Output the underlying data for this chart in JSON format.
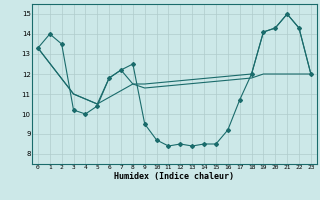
{
  "xlabel": "Humidex (Indice chaleur)",
  "xlim": [
    -0.5,
    23.5
  ],
  "ylim": [
    7.5,
    15.5
  ],
  "yticks": [
    8,
    9,
    10,
    11,
    12,
    13,
    14,
    15
  ],
  "xticks": [
    0,
    1,
    2,
    3,
    4,
    5,
    6,
    7,
    8,
    9,
    10,
    11,
    12,
    13,
    14,
    15,
    16,
    17,
    18,
    19,
    20,
    21,
    22,
    23
  ],
  "bg_color": "#cce8e8",
  "grid_color": "#b0cccc",
  "line_color": "#1a6b6b",
  "series1_x": [
    0,
    1,
    2,
    3,
    4,
    5,
    6,
    7,
    8,
    9,
    10,
    11,
    12,
    13,
    14,
    15,
    16,
    17,
    18,
    19,
    20,
    21,
    22,
    23
  ],
  "series1_y": [
    13.3,
    14.0,
    13.5,
    10.2,
    10.0,
    10.4,
    11.8,
    12.2,
    12.5,
    9.5,
    8.7,
    8.4,
    8.5,
    8.4,
    8.5,
    8.5,
    9.2,
    10.7,
    12.0,
    14.1,
    14.3,
    15.0,
    14.3,
    12.0
  ],
  "series2_x": [
    0,
    3,
    5,
    6,
    7,
    8,
    9,
    18,
    19,
    20,
    21,
    22,
    23
  ],
  "series2_y": [
    13.3,
    11.0,
    10.5,
    11.8,
    12.2,
    11.5,
    11.5,
    12.0,
    14.1,
    14.3,
    15.0,
    14.3,
    12.0
  ],
  "series3_x": [
    0,
    3,
    5,
    8,
    9,
    18,
    19,
    20,
    21,
    22,
    23
  ],
  "series3_y": [
    13.3,
    11.0,
    10.5,
    11.5,
    11.3,
    11.8,
    12.0,
    12.0,
    12.0,
    12.0,
    12.0
  ]
}
